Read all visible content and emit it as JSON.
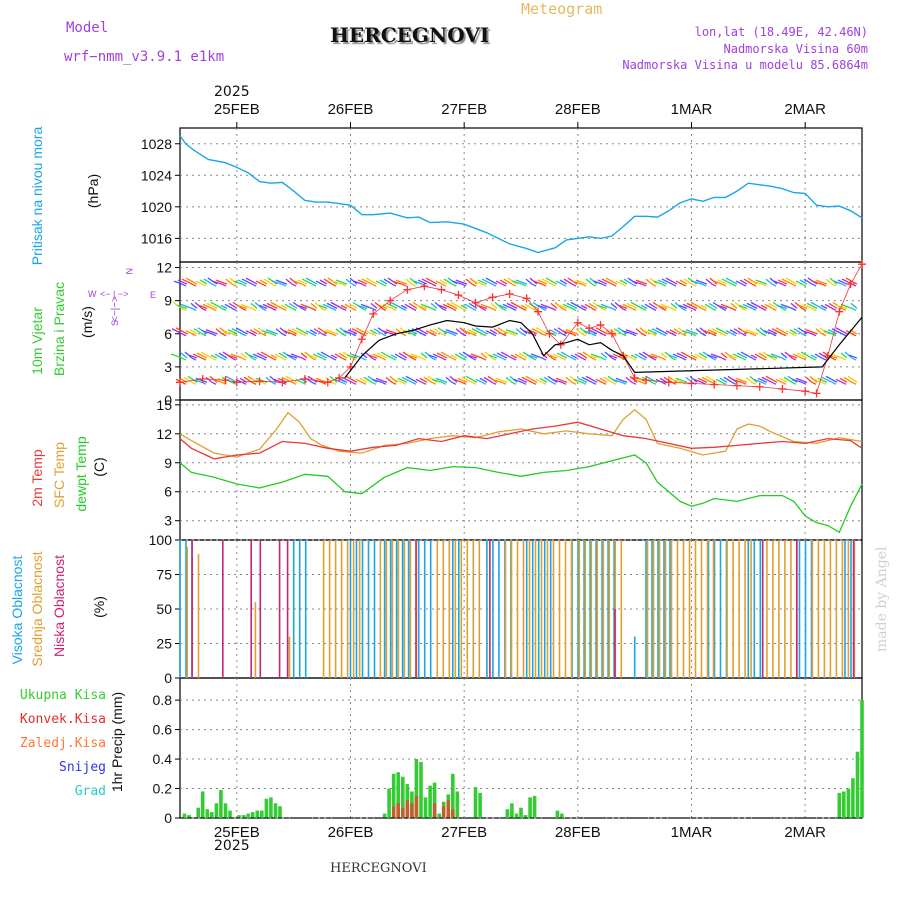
{
  "header": {
    "model_label": "Model",
    "model_name": "wrf−nmm_v3.9.1 e1km",
    "station": "HERCEGNOVI",
    "meteogram": "Meteogram",
    "lonlat": "lon,lat (18.49E, 42.46N)",
    "elevation": "Nadmorska Visina 60m",
    "model_elevation": "Nadmorska Visina u modelu 85.6864m",
    "year": "2025",
    "bottom_station": "HERCEGNOVI",
    "credit": "made by Angel"
  },
  "colors": {
    "pressure": "#1aa6e6",
    "temp2m": "#e8383a",
    "sfc": "#e0a030",
    "dewpt": "#22cc22",
    "precip": "#33cc33",
    "convective": "#e03030",
    "frozen": "#ff7733",
    "snow": "#3333ee",
    "graupel": "#22cccc",
    "label_purple": "#a040e0",
    "grid": "#888888"
  },
  "chart_data": [
    {
      "type": "line",
      "panel": "pressure",
      "ylabel_main": "Pritisak na nivou mora",
      "ylabel_unit": "(hPa)",
      "ylim": [
        1013,
        1030
      ],
      "yticks": [
        1016,
        1020,
        1024,
        1028
      ],
      "xlim": [
        24.5,
        30.5
      ],
      "xticks": [
        {
          "x": 25,
          "label": "25FEB"
        },
        {
          "x": 26,
          "label": "26FEB"
        },
        {
          "x": 27,
          "label": "27FEB"
        },
        {
          "x": 28,
          "label": "28FEB"
        },
        {
          "x": 29,
          "label": "1MAR"
        },
        {
          "x": 30,
          "label": "2MAR"
        }
      ],
      "grid": true,
      "series": [
        {
          "x": [
            24.5,
            24.55,
            24.62,
            24.75,
            24.9,
            25.0,
            25.1,
            25.2,
            25.3,
            25.4,
            25.5,
            25.6,
            25.7,
            25.8,
            26.0,
            26.1,
            26.2,
            26.35,
            26.5,
            26.6,
            26.7,
            26.85,
            27.0,
            27.2,
            27.4,
            27.55,
            27.65,
            27.8,
            27.9,
            28.1,
            28.2,
            28.3,
            28.4,
            28.5,
            28.6,
            28.7,
            28.8,
            28.9,
            29.0,
            29.1,
            29.2,
            29.3,
            29.4,
            29.5,
            29.6,
            29.7,
            29.8,
            29.9,
            30.0,
            30.1,
            30.2,
            30.3,
            30.4,
            30.5
          ],
          "y": [
            1029.0,
            1028.0,
            1027.2,
            1026.0,
            1025.6,
            1025.0,
            1024.3,
            1023.2,
            1023.0,
            1023.1,
            1022.0,
            1020.8,
            1020.6,
            1020.6,
            1020.2,
            1019.0,
            1019.0,
            1019.2,
            1018.6,
            1018.7,
            1018.0,
            1018.1,
            1017.8,
            1016.7,
            1015.3,
            1014.7,
            1014.2,
            1014.8,
            1015.8,
            1016.2,
            1016.0,
            1016.3,
            1017.5,
            1018.8,
            1018.8,
            1018.7,
            1019.5,
            1020.5,
            1021.0,
            1020.7,
            1021.2,
            1021.2,
            1022.0,
            1023.0,
            1022.8,
            1022.6,
            1022.3,
            1021.8,
            1021.7,
            1020.2,
            1020.0,
            1020.1,
            1019.5,
            1018.6
          ]
        }
      ]
    },
    {
      "type": "line",
      "panel": "wind",
      "ylabel_main": "10m Vjetar",
      "ylabel_main2": "Brzina i Pravac",
      "ylabel_unit": "(m/s)",
      "compass": {
        "n": "N",
        "s": "S",
        "e": "E",
        "w": "W"
      },
      "ylim": [
        0,
        12.5
      ],
      "yticks": [
        0,
        3,
        6,
        9,
        12
      ],
      "xlim": [
        24.5,
        30.5
      ],
      "rows": [
        1.6,
        3.8,
        6.0,
        8.3,
        10.5
      ],
      "series": [
        {
          "name": "speed",
          "x": [
            24.5,
            24.7,
            24.9,
            25.0,
            25.2,
            25.4,
            25.6,
            25.8,
            25.9,
            26.0,
            26.1,
            26.2,
            26.35,
            26.5,
            26.65,
            26.8,
            26.95,
            27.1,
            27.25,
            27.4,
            27.55,
            27.65,
            27.75,
            27.85,
            28.0,
            28.1,
            28.2,
            28.3,
            28.4,
            28.5,
            28.6,
            28.8,
            29.0,
            29.2,
            29.4,
            29.6,
            29.8,
            30.0,
            30.1,
            30.2,
            30.3,
            30.4,
            30.5
          ],
          "y": [
            1.6,
            1.9,
            1.8,
            1.6,
            1.7,
            1.6,
            1.9,
            1.6,
            2.0,
            3.0,
            5.5,
            7.8,
            9.0,
            10.0,
            10.3,
            10.0,
            9.5,
            8.8,
            9.3,
            9.6,
            9.2,
            8.0,
            6.0,
            5.0,
            7.0,
            6.5,
            6.8,
            6.0,
            4.0,
            2.0,
            1.8,
            1.6,
            1.5,
            1.4,
            1.3,
            1.2,
            1.0,
            0.8,
            0.6,
            4.0,
            8.0,
            10.5,
            12.3
          ]
        },
        {
          "name": "gust",
          "x": [
            25.95,
            26.1,
            26.25,
            26.4,
            26.55,
            26.7,
            26.85,
            27.0,
            27.1,
            27.25,
            27.4,
            27.5,
            27.6,
            27.7,
            27.8,
            27.9,
            28.0,
            28.1,
            28.2,
            28.3,
            28.4,
            28.5,
            30.15,
            30.3,
            30.5
          ],
          "y": [
            2.0,
            4.0,
            5.4,
            6.0,
            6.3,
            6.8,
            7.2,
            7.0,
            6.7,
            6.6,
            7.2,
            7.0,
            6.0,
            4.0,
            5.0,
            5.2,
            5.5,
            5.0,
            5.2,
            4.5,
            4.0,
            2.5,
            3.0,
            5.0,
            7.5
          ]
        }
      ]
    },
    {
      "type": "line",
      "panel": "temperature",
      "ylabel_lines": [
        "2m Temp",
        "SFC Temp",
        "dewpt Temp"
      ],
      "ylabel_unit": "(C)",
      "ylim": [
        1,
        15.5
      ],
      "yticks": [
        3,
        6,
        9,
        12,
        15
      ],
      "xlim": [
        24.5,
        30.5
      ],
      "series": [
        {
          "name": "2m Temp",
          "x": [
            24.5,
            24.6,
            24.8,
            25.0,
            25.2,
            25.4,
            25.6,
            25.8,
            26.0,
            26.2,
            26.4,
            26.6,
            26.8,
            27.0,
            27.2,
            27.4,
            27.6,
            27.8,
            28.0,
            28.2,
            28.4,
            28.6,
            28.8,
            29.0,
            29.2,
            29.4,
            29.6,
            29.8,
            30.0,
            30.2,
            30.4,
            30.5
          ],
          "y": [
            11.5,
            10.5,
            9.4,
            9.8,
            10.0,
            11.2,
            11.0,
            10.5,
            10.2,
            10.6,
            10.8,
            11.5,
            11.2,
            11.8,
            11.5,
            12.0,
            12.5,
            12.8,
            13.2,
            12.5,
            11.8,
            11.5,
            11.0,
            10.5,
            10.6,
            10.8,
            11.0,
            11.2,
            11.0,
            11.5,
            11.3,
            10.5
          ]
        },
        {
          "name": "SFC Temp",
          "x": [
            24.5,
            24.6,
            24.8,
            25.0,
            25.2,
            25.35,
            25.45,
            25.55,
            25.65,
            25.75,
            25.9,
            26.1,
            26.3,
            26.5,
            26.7,
            26.9,
            27.1,
            27.3,
            27.5,
            27.7,
            27.9,
            28.1,
            28.3,
            28.4,
            28.5,
            28.6,
            28.7,
            28.9,
            29.1,
            29.3,
            29.4,
            29.5,
            29.6,
            29.7,
            29.9,
            30.1,
            30.3,
            30.5
          ],
          "y": [
            12.0,
            11.3,
            10.0,
            9.6,
            10.4,
            12.5,
            14.2,
            13.2,
            11.5,
            10.8,
            10.2,
            10.0,
            10.8,
            11.0,
            11.5,
            11.8,
            11.6,
            12.2,
            12.5,
            12.0,
            12.3,
            12.0,
            11.8,
            13.5,
            14.5,
            13.5,
            11.0,
            10.5,
            9.8,
            10.2,
            12.5,
            13.0,
            12.8,
            12.2,
            11.2,
            11.0,
            11.6,
            11.2
          ]
        },
        {
          "name": "dewpt Temp",
          "x": [
            24.5,
            24.6,
            24.8,
            25.0,
            25.2,
            25.4,
            25.6,
            25.8,
            25.95,
            26.1,
            26.3,
            26.5,
            26.7,
            26.9,
            27.1,
            27.3,
            27.5,
            27.7,
            27.9,
            28.1,
            28.3,
            28.5,
            28.6,
            28.7,
            28.8,
            28.9,
            29.0,
            29.1,
            29.2,
            29.4,
            29.6,
            29.8,
            29.9,
            30.0,
            30.1,
            30.2,
            30.3,
            30.4,
            30.5
          ],
          "y": [
            9.0,
            8.0,
            7.5,
            6.8,
            6.4,
            7.0,
            7.8,
            7.6,
            6.0,
            5.8,
            7.5,
            8.5,
            8.2,
            8.6,
            8.5,
            8.0,
            7.6,
            8.0,
            8.2,
            8.6,
            9.2,
            9.8,
            9.0,
            7.0,
            6.0,
            5.0,
            4.5,
            4.8,
            5.3,
            5.0,
            5.6,
            5.6,
            5.0,
            3.5,
            2.8,
            2.5,
            1.8,
            4.5,
            6.8
          ]
        }
      ]
    },
    {
      "type": "bar",
      "panel": "cloud",
      "ylabel_lines": [
        "Visoka Oblacnost",
        "Srednja Oblacnost",
        "Niska Oblacnost"
      ],
      "ylabel_unit": "(%)",
      "ylim": [
        0,
        100
      ],
      "yticks": [
        0,
        25,
        50,
        75,
        100
      ],
      "xlim": [
        24.5,
        30.5
      ],
      "series": [
        {
          "name": "Visoka Oblacnost",
          "ranges": [
            [
              24.5,
              24.62,
              100
            ],
            [
              25.5,
              25.62,
              100
            ],
            [
              26.0,
              26.25,
              100
            ],
            [
              26.3,
              26.55,
              100
            ],
            [
              26.6,
              26.75,
              100
            ],
            [
              26.9,
              27.0,
              100
            ],
            [
              27.2,
              27.45,
              100
            ],
            [
              27.55,
              27.8,
              100
            ],
            [
              27.95,
              28.35,
              100
            ],
            [
              28.5,
              28.55,
              30
            ],
            [
              28.6,
              28.85,
              100
            ],
            [
              29.15,
              29.35,
              100
            ],
            [
              29.5,
              29.65,
              100
            ],
            [
              29.95,
              30.1,
              100
            ],
            [
              30.35,
              30.45,
              100
            ]
          ]
        },
        {
          "name": "Srednja Oblacnost",
          "ranges": [
            [
              24.55,
              24.6,
              95
            ],
            [
              24.65,
              24.7,
              90
            ],
            [
              25.15,
              25.2,
              55
            ],
            [
              25.45,
              25.5,
              30
            ],
            [
              25.75,
              26.1,
              100
            ],
            [
              26.25,
              26.6,
              100
            ],
            [
              26.75,
              27.15,
              100
            ],
            [
              27.35,
              27.95,
              100
            ],
            [
              28.0,
              28.4,
              100
            ],
            [
              28.6,
              29.2,
              100
            ],
            [
              29.3,
              29.55,
              100
            ],
            [
              29.65,
              29.95,
              100
            ],
            [
              30.05,
              30.45,
              100
            ]
          ]
        },
        {
          "name": "Niska Oblacnost",
          "ranges": [
            [
              24.58,
              24.62,
              100
            ],
            [
              24.85,
              24.9,
              100
            ],
            [
              25.1,
              25.14,
              100
            ],
            [
              25.18,
              25.22,
              100
            ],
            [
              25.35,
              25.38,
              100
            ],
            [
              25.42,
              25.46,
              100
            ],
            [
              26.55,
              26.6,
              100
            ],
            [
              27.2,
              27.25,
              100
            ],
            [
              28.3,
              28.35,
              50
            ],
            [
              29.6,
              29.65,
              100
            ],
            [
              29.9,
              29.95,
              100
            ],
            [
              30.4,
              30.45,
              100
            ]
          ]
        }
      ]
    },
    {
      "type": "bar",
      "panel": "precip",
      "ylabel_main": "1hr Precip (mm)",
      "legend": [
        "Ukupna Kisa",
        "Konvek.Kisa",
        "Zaledj.Kisa",
        "Snijeg",
        "Grad"
      ],
      "ylim": [
        0,
        0.95
      ],
      "yticks": [
        0,
        0.2,
        0.4,
        0.6,
        0.8
      ],
      "xlim": [
        24.5,
        30.5
      ],
      "xticks": [
        {
          "x": 25,
          "label": "25FEB"
        },
        {
          "x": 26,
          "label": "26FEB"
        },
        {
          "x": 27,
          "label": "27FEB"
        },
        {
          "x": 28,
          "label": "28FEB"
        },
        {
          "x": 29,
          "label": "1MAR"
        },
        {
          "x": 30,
          "label": "2MAR"
        }
      ],
      "series": [
        {
          "name": "Ukupna Kisa",
          "x": [
            24.54,
            24.58,
            24.66,
            24.7,
            24.74,
            24.78,
            24.82,
            24.86,
            24.9,
            24.94,
            25.02,
            25.06,
            25.1,
            25.14,
            25.18,
            25.22,
            25.26,
            25.3,
            25.34,
            25.38,
            26.3,
            26.34,
            26.38,
            26.42,
            26.46,
            26.5,
            26.54,
            26.58,
            26.62,
            26.66,
            26.7,
            26.74,
            26.78,
            26.82,
            26.86,
            26.9,
            26.94,
            27.1,
            27.14,
            27.38,
            27.42,
            27.46,
            27.5,
            27.54,
            27.58,
            27.62,
            27.82,
            27.86,
            30.3,
            30.34,
            30.38,
            30.42,
            30.46,
            30.5
          ],
          "y": [
            0.03,
            0.02,
            0.07,
            0.18,
            0.06,
            0.04,
            0.1,
            0.19,
            0.1,
            0.05,
            0.02,
            0.02,
            0.03,
            0.04,
            0.05,
            0.05,
            0.13,
            0.14,
            0.1,
            0.08,
            0.03,
            0.2,
            0.3,
            0.31,
            0.28,
            0.23,
            0.18,
            0.4,
            0.38,
            0.14,
            0.22,
            0.24,
            0.03,
            0.11,
            0.16,
            0.3,
            0.18,
            0.21,
            0.17,
            0.06,
            0.1,
            0.03,
            0.07,
            0.02,
            0.14,
            0.15,
            0.05,
            0.03,
            0.17,
            0.18,
            0.2,
            0.27,
            0.45,
            0.8
          ]
        },
        {
          "name": "Konvek.Kisa",
          "x": [
            26.38,
            26.42,
            26.46,
            26.5,
            26.54,
            26.58,
            26.74,
            26.82,
            26.86,
            26.9
          ],
          "y": [
            0.08,
            0.1,
            0.07,
            0.12,
            0.1,
            0.15,
            0.1,
            0.08,
            0.12,
            0.06
          ]
        }
      ]
    }
  ]
}
